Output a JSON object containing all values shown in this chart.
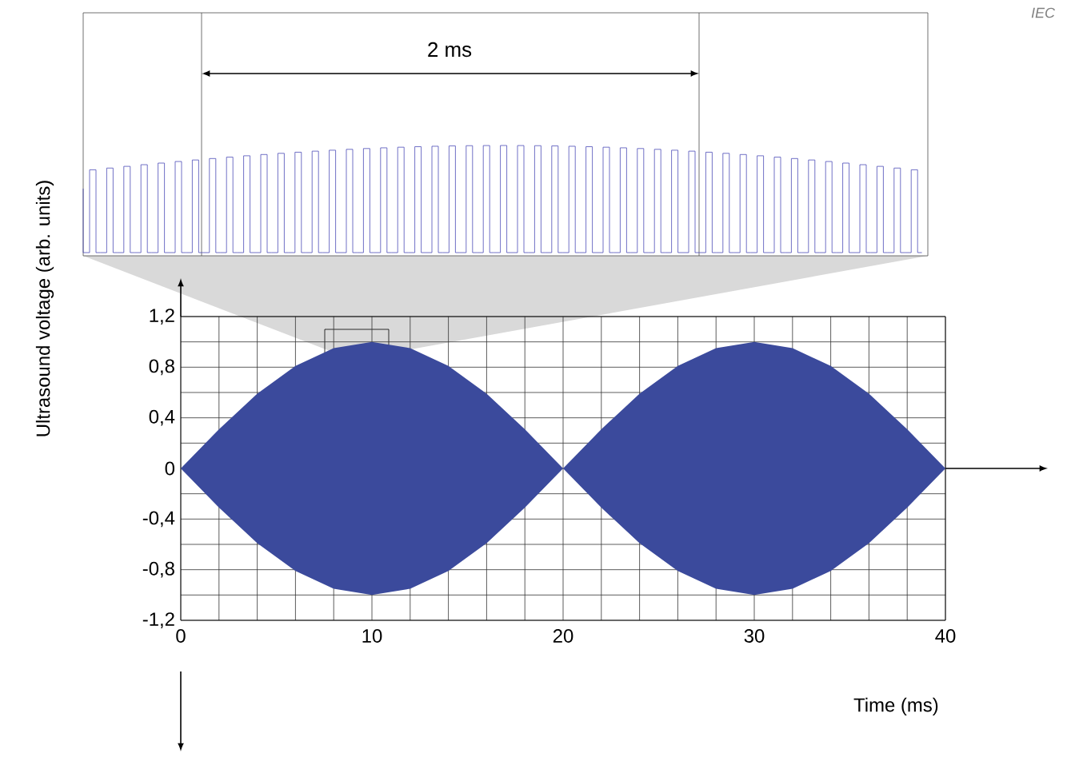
{
  "chart_data": {
    "type": "area",
    "xlabel": "Time  (ms)",
    "ylabel": "Ultrasound voltage  (arb. units)",
    "x": [
      0,
      2,
      4,
      6,
      8,
      10,
      12,
      14,
      16,
      18,
      20,
      22,
      24,
      26,
      28,
      30,
      32,
      34,
      36,
      38,
      40
    ],
    "series": [
      {
        "color": "#3b4a9c",
        "values": [
          0,
          0.31,
          0.59,
          0.81,
          0.95,
          1.0,
          0.95,
          0.81,
          0.59,
          0.31,
          0,
          0.31,
          0.59,
          0.81,
          0.95,
          1.0,
          0.95,
          0.81,
          0.59,
          0.31,
          0
        ]
      },
      {
        "color": "#3b4a9c",
        "values": [
          0,
          -0.31,
          -0.59,
          -0.81,
          -0.95,
          -1.0,
          -0.95,
          -0.81,
          -0.59,
          -0.31,
          0,
          -0.31,
          -0.59,
          -0.81,
          -0.95,
          -1.0,
          -0.95,
          -0.81,
          -0.59,
          -0.31,
          0
        ]
      }
    ],
    "xlim": [
      0,
      40
    ],
    "ylim": [
      -1.2,
      1.2
    ],
    "xticks": [
      0,
      10,
      20,
      30,
      40
    ],
    "yticks": [
      {
        "value": -1.2,
        "label": "-1,2"
      },
      {
        "value": -0.8,
        "label": "-0,8"
      },
      {
        "value": -0.4,
        "label": "-0,4"
      },
      0,
      {
        "value": 0.4,
        "label": "0,4"
      },
      {
        "value": 0.8,
        "label": "0,8"
      },
      {
        "value": 1.2,
        "label": "1,2"
      }
    ],
    "grid": true,
    "annotations": [
      "2 ms",
      "IEC"
    ]
  }
}
